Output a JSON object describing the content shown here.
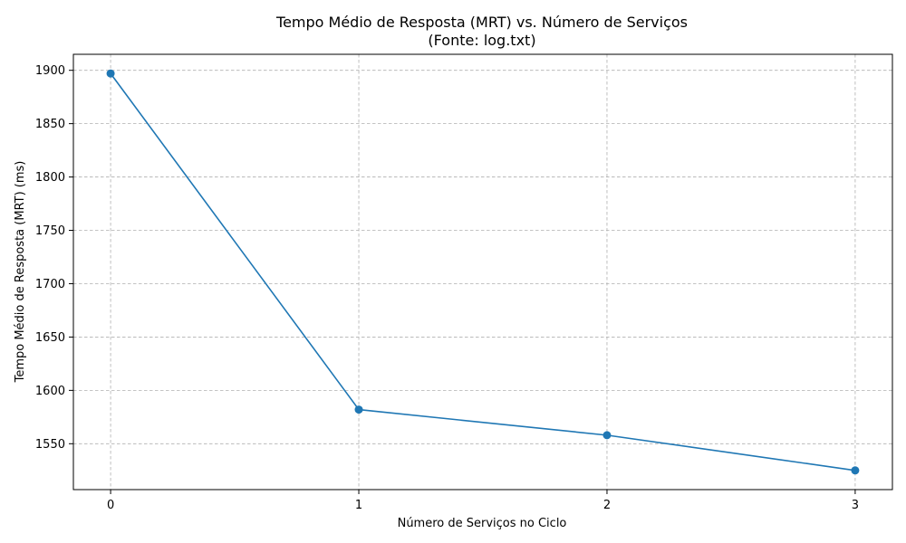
{
  "chart_data": {
    "type": "line",
    "title": "Tempo Médio de Resposta (MRT) vs. Número de Serviços",
    "subtitle": "(Fonte: log.txt)",
    "xlabel": "Número de Serviços no Ciclo",
    "ylabel": "Tempo Médio de Resposta (MRT) (ms)",
    "x": [
      0,
      1,
      2,
      3
    ],
    "x_ticks": [
      "0",
      "1",
      "2",
      "3"
    ],
    "xlim": [
      -0.15,
      3.15
    ],
    "y_ticks": [
      1550,
      1600,
      1650,
      1700,
      1750,
      1800,
      1850,
      1900
    ],
    "ylim": [
      1507,
      1915
    ],
    "grid": true,
    "series": [
      {
        "values": [
          1897,
          1582,
          1558,
          1525
        ],
        "color": "#1f77b4"
      }
    ]
  }
}
